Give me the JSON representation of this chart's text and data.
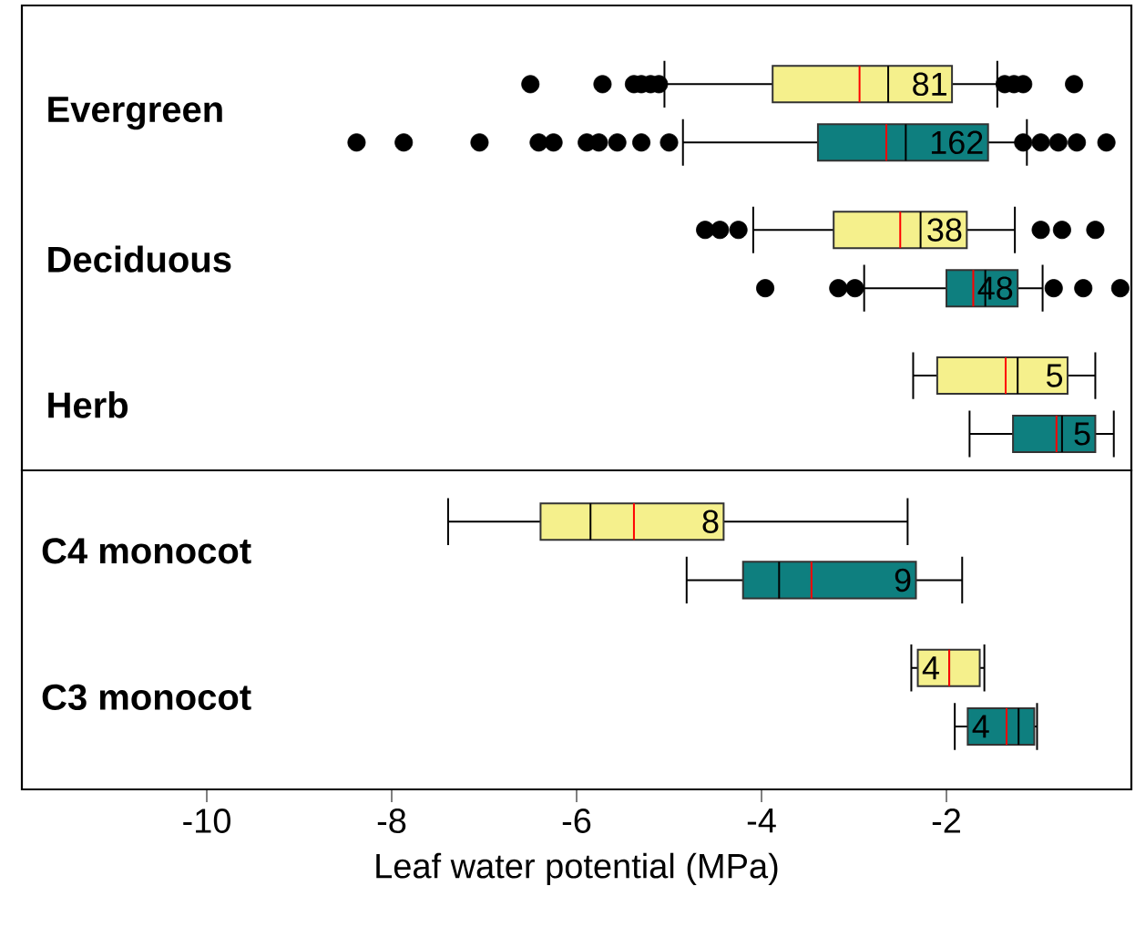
{
  "chart_data": [
    {
      "type": "box",
      "orientation": "horizontal",
      "categories": [
        "Evergreen",
        "Deciduous",
        "Herb"
      ],
      "xlim": [
        -12,
        0
      ],
      "tick_labels": "y",
      "series": [
        {
          "color": "#f5f08c",
          "value_labels": [
            "81",
            "38",
            "5"
          ],
          "boxes": [
            {
              "low": -5.05,
              "q1": -3.88,
              "median": -2.63,
              "q3": -1.94,
              "high": -1.45,
              "mean": -2.94,
              "outliers": [
                -6.5,
                -5.72,
                -5.38,
                -5.3,
                -5.2,
                -5.11,
                -1.37,
                -1.27,
                -1.17,
                -0.62
              ]
            },
            {
              "low": -4.09,
              "q1": -3.22,
              "median": -2.28,
              "q3": -1.78,
              "high": -1.26,
              "mean": -2.5,
              "outliers": [
                -4.61,
                -4.45,
                -4.25,
                -0.98,
                -0.75,
                -0.39
              ]
            },
            {
              "low": -2.36,
              "q1": -2.1,
              "median": -1.23,
              "q3": -0.69,
              "high": -0.39,
              "mean": -1.36
            }
          ]
        },
        {
          "color": "#0e7f7f",
          "value_labels": [
            "162",
            "48",
            "5"
          ],
          "boxes": [
            {
              "low": -4.85,
              "q1": -3.39,
              "median": -2.44,
              "q3": -1.55,
              "high": -1.13,
              "mean": -2.65,
              "outliers": [
                -8.38,
                -7.87,
                -7.05,
                -6.41,
                -6.25,
                -5.89,
                -5.76,
                -5.56,
                -5.3,
                -5.0,
                -1.17,
                -0.98,
                -0.79,
                -0.59,
                -0.27
              ]
            },
            {
              "low": -2.89,
              "q1": -2.0,
              "median": -1.58,
              "q3": -1.23,
              "high": -0.96,
              "mean": -1.71,
              "outliers": [
                -3.96,
                -3.17,
                -2.99,
                -0.84,
                -0.52,
                -0.12
              ]
            },
            {
              "low": -1.75,
              "q1": -1.28,
              "median": -0.75,
              "q3": -0.39,
              "high": -0.19,
              "mean": -0.81
            }
          ]
        }
      ]
    },
    {
      "type": "box",
      "orientation": "horizontal",
      "categories": [
        "C4 monocot",
        "C3 monocot"
      ],
      "xlim": [
        -12,
        0
      ],
      "xticks": [
        -10,
        -8,
        -6,
        -4,
        -2
      ],
      "xlabel": "Leaf water potential (MPa)",
      "series": [
        {
          "color": "#f5f08c",
          "value_labels": [
            "8",
            "4"
          ],
          "boxes": [
            {
              "low": -7.39,
              "q1": -6.39,
              "median": -5.85,
              "q3": -4.41,
              "high": -2.42,
              "mean": -5.38
            },
            {
              "low": -2.38,
              "q1": -2.31,
              "median": -1.97,
              "q3": -1.64,
              "high": -1.59,
              "mean": -1.97
            }
          ]
        },
        {
          "color": "#0e7f7f",
          "value_labels": [
            "9",
            "4"
          ],
          "boxes": [
            {
              "low": -4.81,
              "q1": -4.2,
              "median": -3.81,
              "q3": -2.33,
              "high": -1.83,
              "mean": -3.46
            },
            {
              "low": -1.91,
              "q1": -1.77,
              "median": -1.22,
              "q3": -1.05,
              "high": -1.02,
              "mean": -1.35
            }
          ]
        }
      ]
    }
  ]
}
